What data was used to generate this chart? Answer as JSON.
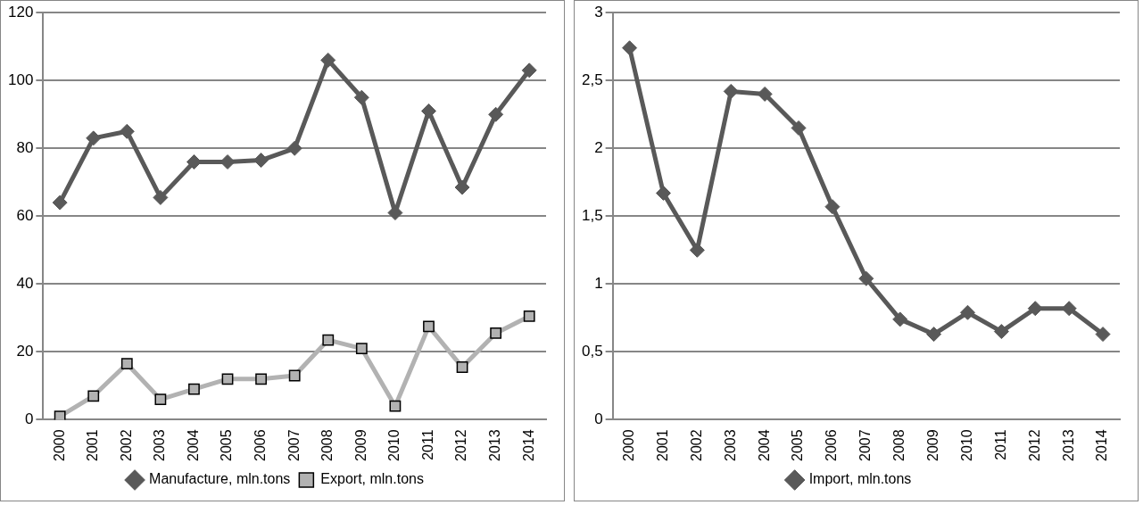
{
  "chart_data": [
    {
      "type": "line",
      "categories": [
        "2000",
        "2001",
        "2002",
        "2003",
        "2004",
        "2005",
        "2006",
        "2007",
        "2008",
        "2009",
        "2010",
        "2011",
        "2012",
        "2013",
        "2014"
      ],
      "series": [
        {
          "name": "Manufacture, mln.tons",
          "color": "#595959",
          "marker": "diamond",
          "values": [
            64,
            83,
            85,
            65.5,
            76,
            76,
            76.5,
            80,
            106,
            95,
            61,
            91,
            68.5,
            90,
            103
          ]
        },
        {
          "name": "Export, mln.tons",
          "color": "#b2b2b2",
          "marker": "square",
          "values": [
            1,
            7,
            16.5,
            6,
            9,
            12,
            12,
            13,
            23.5,
            21,
            4,
            27.5,
            15.5,
            25.5,
            30.5
          ]
        }
      ],
      "ylim": [
        0,
        120
      ],
      "yticks": [
        0,
        20,
        40,
        60,
        80,
        100,
        120
      ],
      "grid": "y",
      "legend": "bottom",
      "line_style": "solid"
    },
    {
      "type": "line",
      "categories": [
        "2000",
        "2001",
        "2002",
        "2003",
        "2004",
        "2005",
        "2006",
        "2007",
        "2008",
        "2009",
        "2010",
        "2011",
        "2012",
        "2013",
        "2014"
      ],
      "series": [
        {
          "name": "Import, mln.tons",
          "color": "#595959",
          "marker": "diamond",
          "values": [
            2.74,
            1.67,
            1.25,
            2.42,
            2.4,
            2.15,
            1.57,
            1.04,
            0.74,
            0.63,
            0.79,
            0.65,
            0.82,
            0.82,
            0.63
          ]
        }
      ],
      "ylim": [
        0,
        3
      ],
      "yticks": [
        0,
        {
          "value": 0.5,
          "label": "0,5"
        },
        1,
        {
          "value": 1.5,
          "label": "1,5"
        },
        2,
        {
          "value": 2.5,
          "label": "2,5"
        },
        3
      ],
      "grid": "y",
      "legend": "bottom",
      "line_style": "solid"
    }
  ]
}
